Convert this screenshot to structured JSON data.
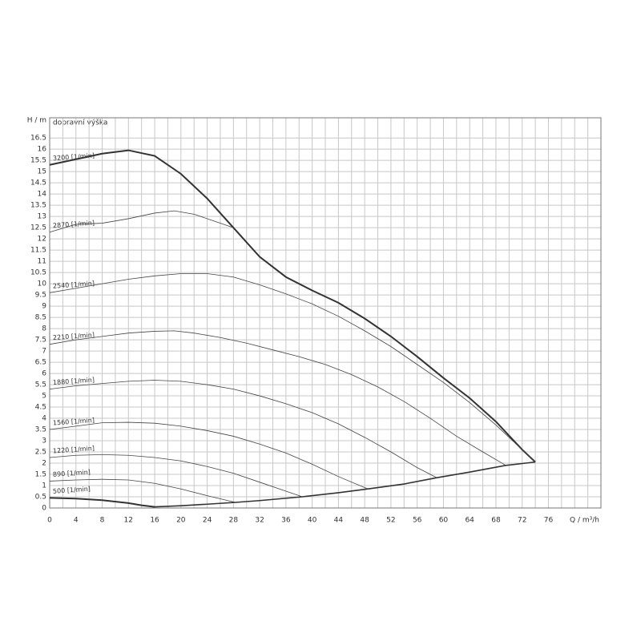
{
  "chart_data": {
    "type": "line",
    "y_label": "H / m",
    "y_title": "dopravní výška",
    "x_label": "Q / m³/h",
    "xlim": [
      0,
      84
    ],
    "ylim": [
      0,
      17.4
    ],
    "xticks": [
      0,
      4,
      8,
      12,
      16,
      20,
      24,
      28,
      32,
      36,
      40,
      44,
      48,
      52,
      56,
      60,
      64,
      68,
      72,
      76
    ],
    "xminorticks": [
      2,
      6,
      10,
      14,
      18,
      22,
      26,
      30,
      34,
      38,
      42,
      46,
      50,
      54,
      58,
      62,
      66,
      70,
      74,
      78,
      80,
      82
    ],
    "yticks": [
      0,
      0.5,
      1,
      1.5,
      2,
      2.5,
      3,
      3.5,
      4,
      4.5,
      5,
      5.5,
      6,
      6.5,
      7,
      7.5,
      8,
      8.5,
      9,
      9.5,
      10,
      10.5,
      11,
      11.5,
      12,
      12.5,
      13,
      13.5,
      14,
      14.5,
      15,
      15.5,
      16,
      16.5
    ],
    "grid": true,
    "series": [
      {
        "name": "3200 [1/min]",
        "color": "#333333",
        "width": 2,
        "x": [
          0,
          4,
          8,
          12,
          16,
          20,
          24,
          28,
          32,
          36,
          40,
          44,
          48,
          52,
          56,
          60,
          64,
          68,
          72,
          74
        ],
        "values": [
          15.3,
          15.55,
          15.8,
          15.95,
          15.7,
          14.9,
          13.8,
          12.5,
          11.2,
          10.3,
          9.7,
          9.15,
          8.45,
          7.65,
          6.75,
          5.8,
          4.9,
          3.85,
          2.6,
          2.05
        ]
      },
      {
        "name": "2870 [1/min]",
        "color": "#444444",
        "width": 0.8,
        "x": [
          0,
          4,
          8,
          12,
          16,
          19,
          22,
          25,
          28
        ],
        "values": [
          12.3,
          12.65,
          12.7,
          12.9,
          13.15,
          13.25,
          13.1,
          12.8,
          12.5
        ]
      },
      {
        "name": "2540 [1/min]",
        "color": "#444444",
        "width": 0.8,
        "x": [
          0,
          4,
          8,
          12,
          16,
          20,
          24,
          28,
          32,
          36,
          40,
          44,
          48,
          52,
          56,
          60,
          64,
          68,
          72,
          74
        ],
        "values": [
          9.6,
          9.8,
          10.0,
          10.2,
          10.35,
          10.45,
          10.45,
          10.3,
          9.95,
          9.55,
          9.1,
          8.55,
          7.9,
          7.2,
          6.4,
          5.6,
          4.7,
          3.7,
          2.6,
          2.05
        ]
      },
      {
        "name": "2210 [1/min]",
        "color": "#444444",
        "width": 0.8,
        "x": [
          0,
          4,
          8,
          12,
          16,
          19,
          22,
          26,
          30,
          34,
          38,
          42,
          46,
          50,
          54,
          58,
          62,
          66,
          69.5
        ],
        "values": [
          7.3,
          7.5,
          7.65,
          7.8,
          7.88,
          7.9,
          7.8,
          7.6,
          7.35,
          7.05,
          6.75,
          6.4,
          5.95,
          5.4,
          4.75,
          4.0,
          3.2,
          2.5,
          1.9
        ]
      },
      {
        "name": "1880 [1/min]",
        "color": "#444444",
        "width": 0.8,
        "x": [
          0,
          4,
          8,
          12,
          16,
          20,
          24,
          28,
          32,
          36,
          40,
          44,
          48,
          52,
          56,
          59
        ],
        "values": [
          5.3,
          5.45,
          5.55,
          5.65,
          5.7,
          5.65,
          5.5,
          5.3,
          5.0,
          4.65,
          4.25,
          3.75,
          3.15,
          2.5,
          1.8,
          1.35
        ]
      },
      {
        "name": "1560 [1/min]",
        "color": "#444444",
        "width": 0.8,
        "x": [
          0,
          4,
          8,
          12,
          16,
          20,
          24,
          28,
          32,
          36,
          40,
          44,
          48.5
        ],
        "values": [
          3.5,
          3.65,
          3.8,
          3.82,
          3.78,
          3.65,
          3.45,
          3.2,
          2.85,
          2.45,
          1.95,
          1.4,
          0.85
        ]
      },
      {
        "name": "1220 [1/min]",
        "color": "#444444",
        "width": 0.8,
        "x": [
          0,
          4,
          8,
          12,
          16,
          20,
          24,
          28,
          32,
          36,
          38.5
        ],
        "values": [
          2.25,
          2.35,
          2.38,
          2.35,
          2.25,
          2.1,
          1.85,
          1.55,
          1.15,
          0.75,
          0.5
        ]
      },
      {
        "name": "890 [1/min]",
        "color": "#444444",
        "width": 0.8,
        "x": [
          0,
          4,
          8,
          12,
          16,
          20,
          24,
          28.3
        ],
        "values": [
          1.2,
          1.25,
          1.28,
          1.25,
          1.1,
          0.85,
          0.55,
          0.25
        ]
      },
      {
        "name": "500 [1/min]",
        "color": "#333333",
        "width": 2,
        "x": [
          0,
          4,
          8,
          12,
          14,
          16
        ],
        "values": [
          0.45,
          0.42,
          0.35,
          0.22,
          0.12,
          0.05
        ]
      }
    ],
    "limit_curve": {
      "color": "#333333",
      "width": 1.6,
      "x": [
        16,
        20,
        24,
        28.3,
        32,
        38.5,
        44,
        48.5,
        54,
        59,
        64,
        69.5,
        74
      ],
      "values": [
        0.05,
        0.1,
        0.17,
        0.25,
        0.33,
        0.5,
        0.68,
        0.85,
        1.07,
        1.35,
        1.6,
        1.9,
        2.05
      ]
    }
  }
}
